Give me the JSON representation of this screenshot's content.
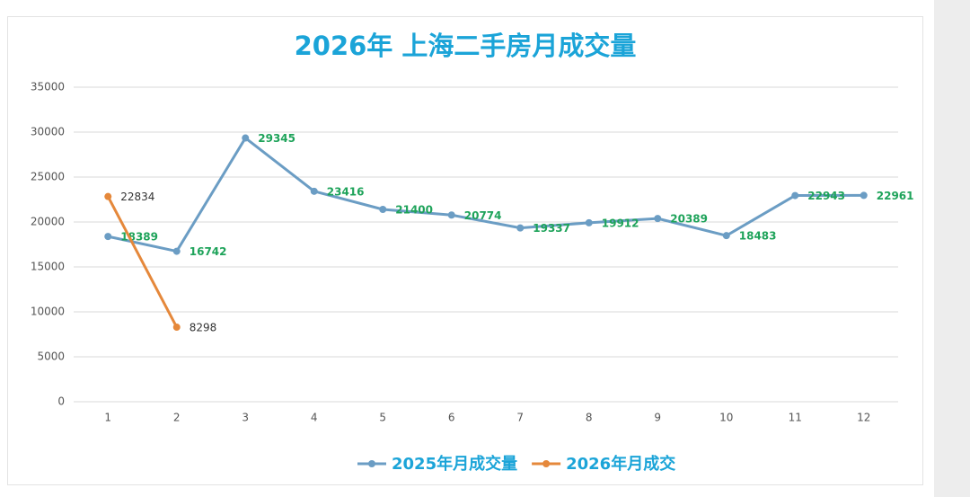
{
  "chart_data": {
    "type": "line",
    "title": "2026年 上海二手房月成交量",
    "categories": [
      "1",
      "2",
      "3",
      "4",
      "5",
      "6",
      "7",
      "8",
      "9",
      "10",
      "11",
      "12"
    ],
    "series": [
      {
        "name": "2025年月成交量",
        "color": "#6b9dc4",
        "label_color": "#1ea35a",
        "values": [
          18389,
          16742,
          29345,
          23416,
          21400,
          20774,
          19337,
          19912,
          20389,
          18483,
          22943,
          22961
        ]
      },
      {
        "name": "2026年月成交",
        "color": "#e5883b",
        "label_color": "#333333",
        "values": [
          22834,
          8298,
          null,
          null,
          null,
          null,
          null,
          null,
          null,
          null,
          null,
          null
        ]
      }
    ],
    "ylim": [
      0,
      35000
    ],
    "yticks": [
      0,
      5000,
      10000,
      15000,
      20000,
      25000,
      30000,
      35000
    ],
    "grid": true,
    "legend": "bottom"
  }
}
